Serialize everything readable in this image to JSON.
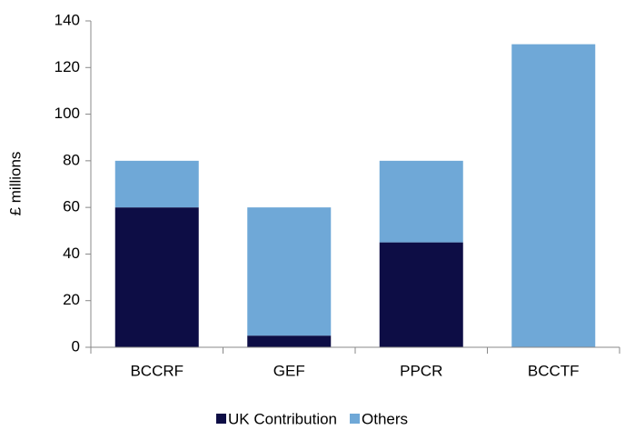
{
  "chart_data": {
    "type": "stacked_bar",
    "y_label": "£ millions",
    "categories": [
      "BCCRF",
      "GEF",
      "PPCR",
      "BCCTF"
    ],
    "series": [
      {
        "name": "UK Contribution",
        "color": "#0d0d45",
        "values": [
          60,
          5,
          45,
          0
        ]
      },
      {
        "name": "Others",
        "color": "#6fa8d7",
        "values": [
          20,
          55,
          35,
          130
        ]
      }
    ],
    "ylim": [
      0,
      140
    ],
    "yticks": [
      0,
      20,
      40,
      60,
      80,
      100,
      120,
      140
    ],
    "grid": false,
    "legend": "bottom"
  }
}
